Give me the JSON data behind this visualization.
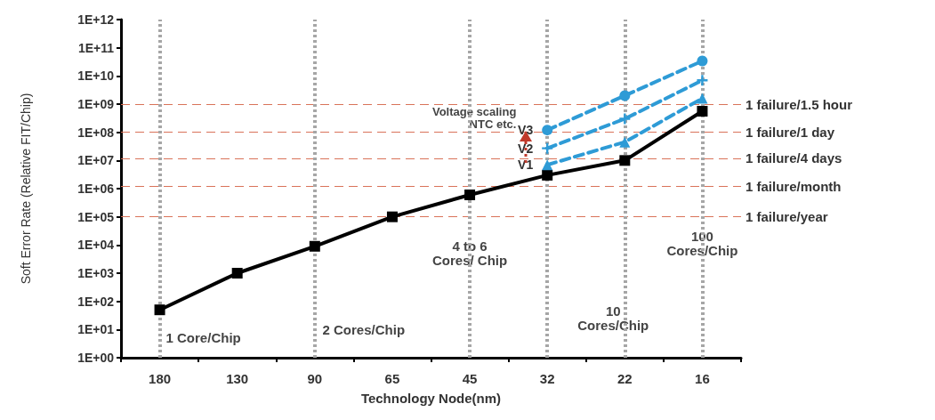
{
  "chart_data": {
    "type": "line",
    "xlabel": "Technology Node(nm)",
    "ylabel": "Soft Error Rate (Relative FIT/Chip)",
    "categories": [
      "180",
      "130",
      "90",
      "65",
      "45",
      "32",
      "22",
      "16"
    ],
    "series": [
      {
        "color": "#000000",
        "marker": "square",
        "line_style": "solid",
        "values": [
          50,
          1000,
          9000,
          100000,
          600000,
          3000000,
          10000000,
          560000000
        ]
      },
      {
        "name": "V1",
        "color": "#2e9bd6",
        "marker": "triangle",
        "line_style": "dashed",
        "values": [
          null,
          null,
          null,
          null,
          null,
          7000000,
          45000000,
          1600000000
        ]
      },
      {
        "name": "V2",
        "color": "#2e9bd6",
        "marker": "cross",
        "line_style": "dashed",
        "values": [
          null,
          null,
          null,
          null,
          null,
          27000000,
          300000000,
          7000000000
        ]
      },
      {
        "name": "V3",
        "color": "#2e9bd6",
        "marker": "circle",
        "line_style": "dashed",
        "values": [
          null,
          null,
          null,
          null,
          null,
          120000000,
          2000000000,
          34000000000
        ]
      }
    ],
    "log": "y",
    "ylim": [
      1,
      1000000000000
    ],
    "yticks": [
      {
        "value": 1,
        "label": "1E+00"
      },
      {
        "value": 10,
        "label": "1E+01"
      },
      {
        "value": 100,
        "label": "1E+02"
      },
      {
        "value": 1000,
        "label": "1E+03"
      },
      {
        "value": 10000,
        "label": "1E+04"
      },
      {
        "value": 100000,
        "label": "1E+05"
      },
      {
        "value": 1000000,
        "label": "1E+06"
      },
      {
        "value": 10000000,
        "label": "1E+07"
      },
      {
        "value": 100000000,
        "label": "1E+08"
      },
      {
        "value": 1000000000,
        "label": "1E+09"
      },
      {
        "value": 10000000000,
        "label": "1E+10"
      },
      {
        "value": 100000000000,
        "label": "1E+11"
      },
      {
        "value": 1000000000000,
        "label": "1E+12"
      }
    ],
    "grid": false,
    "legend": false,
    "ref_lines": [
      {
        "axis": "y",
        "value": 1000000000,
        "label": "1 failure/1.5 hour",
        "color": "#d9735a",
        "line_style": "dashed"
      },
      {
        "axis": "y",
        "value": 100000000,
        "label": "1 failure/1 day",
        "color": "#d9735a",
        "line_style": "dashed"
      },
      {
        "axis": "y",
        "value": 12000000,
        "label": "1 failure/4 days",
        "color": "#d9735a",
        "line_style": "dashed"
      },
      {
        "axis": "y",
        "value": 1200000,
        "label": "1 failure/month",
        "color": "#d9735a",
        "line_style": "dashed"
      },
      {
        "axis": "y",
        "value": 100000,
        "label": "1 failure/year",
        "color": "#d9735a",
        "line_style": "dashed"
      },
      {
        "axis": "x",
        "value": "180",
        "color": "#a6a6a6",
        "line_style": "dotted"
      },
      {
        "axis": "x",
        "value": "90",
        "color": "#a6a6a6",
        "line_style": "dotted"
      },
      {
        "axis": "x",
        "value": "45",
        "color": "#a6a6a6",
        "line_style": "dotted"
      },
      {
        "axis": "x",
        "value": "32",
        "color": "#a6a6a6",
        "line_style": "dotted"
      },
      {
        "axis": "x",
        "value": "22",
        "color": "#a6a6a6",
        "line_style": "dotted"
      },
      {
        "axis": "x",
        "value": "16",
        "color": "#a6a6a6",
        "line_style": "dotted"
      }
    ],
    "annotations": [
      "1 Core/Chip",
      "2 Cores/Chip",
      "4 to 6 Cores/ Chip",
      "10 Cores/Chip",
      "100 Cores/Chip",
      "Voltage scaling NTC etc."
    ]
  }
}
